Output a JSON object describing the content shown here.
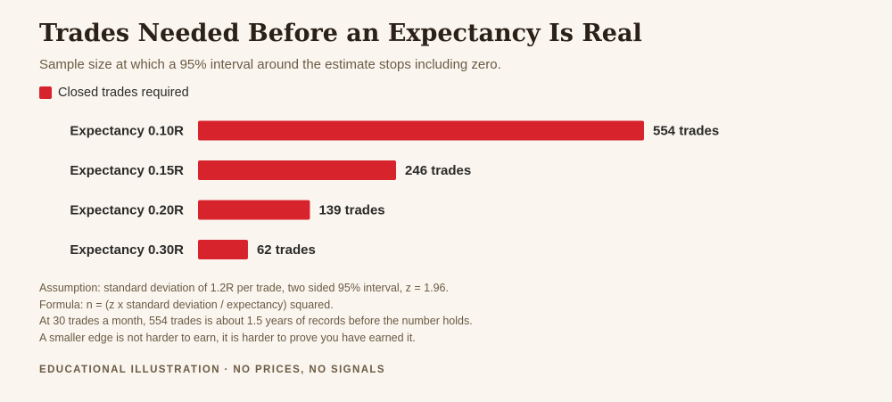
{
  "header": {
    "title": "Trades Needed Before an Expectancy Is Real",
    "subtitle": "Sample size at which a 95% interval around the estimate stops including zero."
  },
  "legend": {
    "label": "Closed trades required",
    "color": "#d7232c"
  },
  "chart_data": {
    "type": "bar",
    "orientation": "horizontal",
    "categories": [
      "Expectancy 0.10R",
      "Expectancy 0.15R",
      "Expectancy 0.20R",
      "Expectancy 0.30R"
    ],
    "series": [
      {
        "name": "Closed trades required",
        "values": [
          554,
          246,
          139,
          62
        ],
        "color": "#d7232c"
      }
    ],
    "value_labels": [
      "554 trades",
      "246 trades",
      "139 trades",
      "62 trades"
    ],
    "xlim": [
      0,
      554
    ],
    "grid": false,
    "legend_position": "top-left"
  },
  "notes": [
    "Assumption: standard deviation of 1.2R per trade, two sided 95% interval, z = 1.96.",
    "Formula: n = (z x standard deviation / expectancy) squared.",
    "At 30 trades a month, 554 trades is about 1.5 years of records before the number holds.",
    "A smaller edge is not harder to earn, it is harder to prove you have earned it."
  ],
  "footer": "EDUCATIONAL ILLUSTRATION · NO PRICES, NO SIGNALS"
}
